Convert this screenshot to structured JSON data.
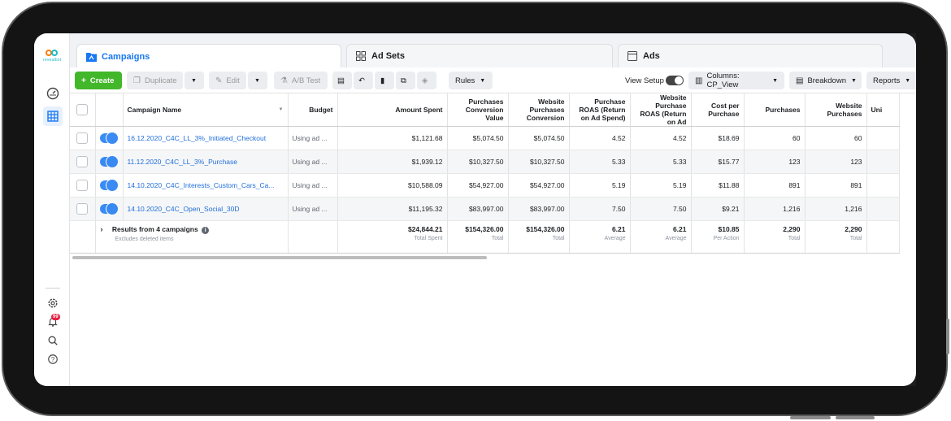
{
  "app": {
    "logo_text": "revealbot"
  },
  "tabs": [
    {
      "label": "Campaigns",
      "icon": "folder-icon",
      "active": true
    },
    {
      "label": "Ad Sets",
      "icon": "grid-icon",
      "active": false
    },
    {
      "label": "Ads",
      "icon": "window-icon",
      "active": false
    }
  ],
  "toolbar": {
    "create_label": "Create",
    "duplicate_label": "Duplicate",
    "edit_label": "Edit",
    "abtest_label": "A/B Test",
    "rules_label": "Rules",
    "view_setup_label": "View Setup",
    "columns_label": "Columns: CP_View",
    "breakdown_label": "Breakdown",
    "reports_label": "Reports"
  },
  "nav": {
    "notification_count": "99"
  },
  "table": {
    "columns": [
      "Campaign Name",
      "Budget",
      "Amount Spent",
      "Purchases Conversion Value",
      "Website Purchases Conversion",
      "Purchase ROAS (Return on Ad Spend)",
      "Website Purchase ROAS (Return on Ad",
      "Cost per Purchase",
      "Purchases",
      "Website Purchases",
      "Uni"
    ],
    "rows": [
      {
        "name": "16.12.2020_C4C_LL_3%_Initiated_Checkout",
        "budget": "Using ad ...",
        "spent": "$1,121.68",
        "conv_value": "$5,074.50",
        "web_conv": "$5,074.50",
        "roas": "4.52",
        "web_roas": "4.52",
        "cpp": "$18.69",
        "purchases": "60",
        "web_purchases": "60"
      },
      {
        "name": "11.12.2020_C4C_LL_3%_Purchase",
        "budget": "Using ad ...",
        "spent": "$1,939.12",
        "conv_value": "$10,327.50",
        "web_conv": "$10,327.50",
        "roas": "5.33",
        "web_roas": "5.33",
        "cpp": "$15.77",
        "purchases": "123",
        "web_purchases": "123"
      },
      {
        "name": "14.10.2020_C4C_Interests_Custom_Cars_Ca...",
        "budget": "Using ad ...",
        "spent": "$10,588.09",
        "conv_value": "$54,927.00",
        "web_conv": "$54,927.00",
        "roas": "5.19",
        "web_roas": "5.19",
        "cpp": "$11.88",
        "purchases": "891",
        "web_purchases": "891"
      },
      {
        "name": "14.10.2020_C4C_Open_Social_30D",
        "budget": "Using ad ...",
        "spent": "$11,195.32",
        "conv_value": "$83,997.00",
        "web_conv": "$83,997.00",
        "roas": "7.50",
        "web_roas": "7.50",
        "cpp": "$9.21",
        "purchases": "1,216",
        "web_purchases": "1,216"
      }
    ],
    "summary": {
      "title": "Results from 4 campaigns",
      "subtitle": "Excludes deleted items",
      "spent": "$24,844.21",
      "spent_sub": "Total Spent",
      "conv_value": "$154,326.00",
      "conv_value_sub": "Total",
      "web_conv": "$154,326.00",
      "web_conv_sub": "Total",
      "roas": "6.21",
      "roas_sub": "Average",
      "web_roas": "6.21",
      "web_roas_sub": "Average",
      "cpp": "$10.85",
      "cpp_sub": "Per Action",
      "purchases": "2,290",
      "purchases_sub": "Total",
      "web_purchases": "2,290",
      "web_purchases_sub": "Total"
    }
  },
  "colors": {
    "accent": "#1877f2",
    "create": "#42b72a",
    "badge": "#e41e3f"
  }
}
